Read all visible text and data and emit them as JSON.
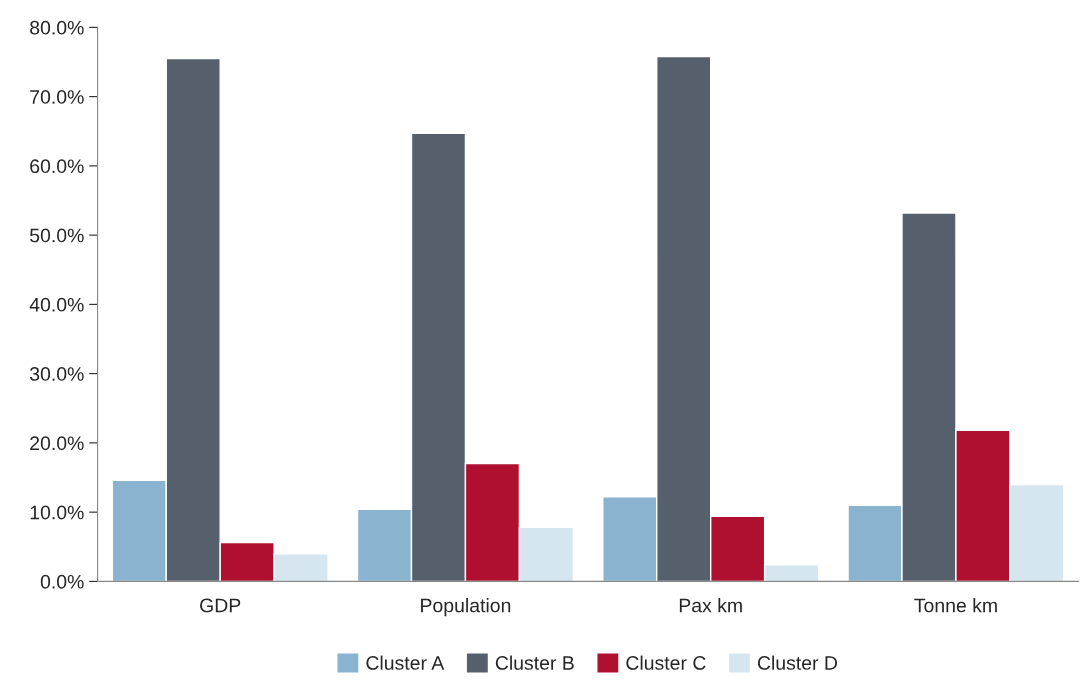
{
  "chart_data": {
    "type": "bar",
    "categories": [
      "GDP",
      "Population",
      "Pax km",
      "Tonne km"
    ],
    "series": [
      {
        "name": "Cluster A",
        "color": "#89b3cf",
        "values": [
          14.6,
          10.4,
          12.2,
          11.0
        ]
      },
      {
        "name": "Cluster B",
        "color": "#56606d",
        "values": [
          75.5,
          64.7,
          75.8,
          53.2
        ]
      },
      {
        "name": "Cluster C",
        "color": "#b01030",
        "values": [
          5.6,
          17.0,
          9.4,
          21.8
        ]
      },
      {
        "name": "Cluster D",
        "color": "#d6e6f1",
        "values": [
          4.0,
          7.8,
          2.4,
          14.0
        ]
      }
    ],
    "ylim": [
      0,
      80
    ],
    "yticks": [
      {
        "value": 0,
        "label": "0.0%"
      },
      {
        "value": 10,
        "label": "10.0%"
      },
      {
        "value": 20,
        "label": "20.0%"
      },
      {
        "value": 30,
        "label": "30.0%"
      },
      {
        "value": 40,
        "label": "40.0%"
      },
      {
        "value": 50,
        "label": "50.0%"
      },
      {
        "value": 60,
        "label": "60.0%"
      },
      {
        "value": 70,
        "label": "70.0%"
      },
      {
        "value": 80,
        "label": "80.0%"
      }
    ],
    "grid": false,
    "legend": "bottom"
  }
}
